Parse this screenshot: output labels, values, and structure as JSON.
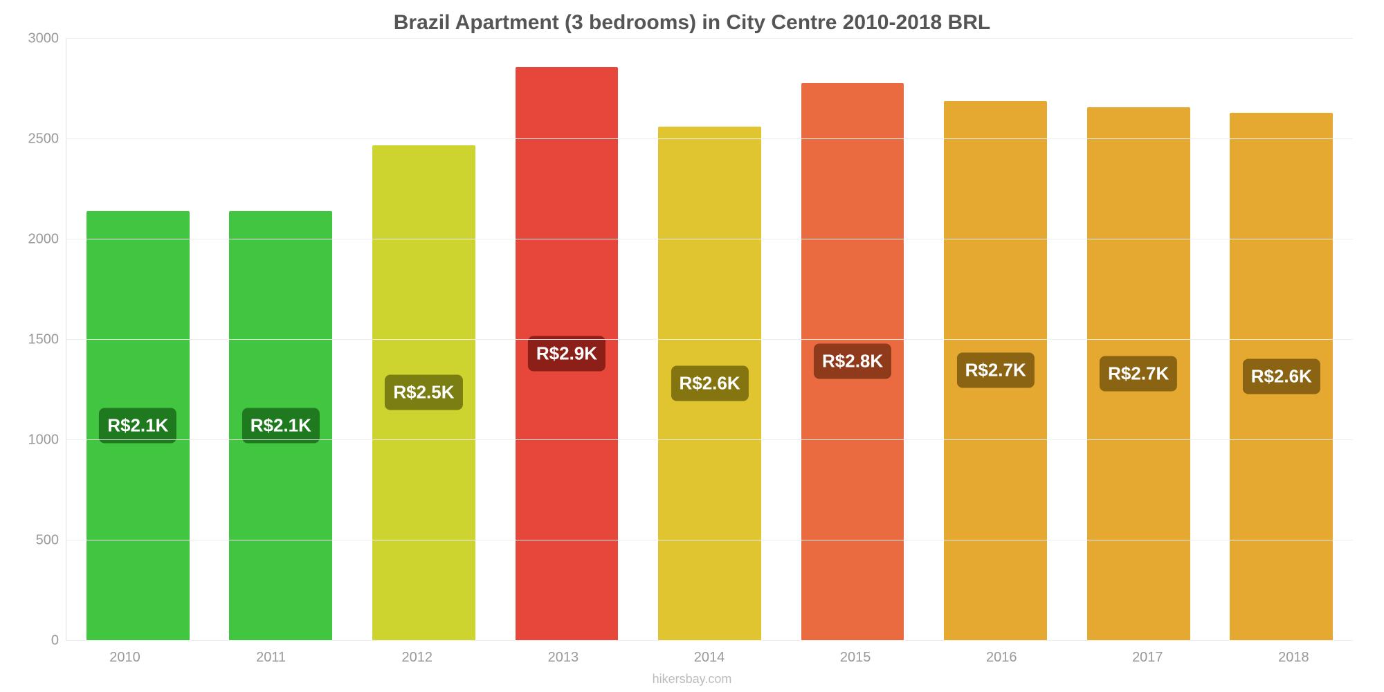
{
  "chart": {
    "type": "bar",
    "title": "Brazil Apartment (3 bedrooms) in City Centre 2010-2018 BRL",
    "title_fontsize": 30,
    "title_color": "#555555",
    "background_color": "#ffffff",
    "grid_color": "#eeeeee",
    "axis_line_color": "#dddddd",
    "tick_label_color": "#999999",
    "tick_fontsize": 20,
    "ylim": [
      0,
      3000
    ],
    "ytick_step": 500,
    "yticks": [
      0,
      500,
      1000,
      1500,
      2000,
      2500,
      3000
    ],
    "categories": [
      "2010",
      "2011",
      "2012",
      "2013",
      "2014",
      "2015",
      "2016",
      "2017",
      "2018"
    ],
    "values": [
      2140,
      2140,
      2470,
      2860,
      2560,
      2780,
      2690,
      2660,
      2630
    ],
    "bar_colors": [
      "#42c642",
      "#42c642",
      "#cdd32f",
      "#e7463a",
      "#e0c530",
      "#ea6b3f",
      "#e5a931",
      "#e5a931",
      "#e5a931"
    ],
    "value_labels": [
      "R$2.1K",
      "R$2.1K",
      "R$2.5K",
      "R$2.9K",
      "R$2.6K",
      "R$2.8K",
      "R$2.7K",
      "R$2.7K",
      "R$2.6K"
    ],
    "value_label_bgs": [
      "#1f7a1f",
      "#1f7a1f",
      "#7a7e13",
      "#8c1f17",
      "#857510",
      "#8f3a1a",
      "#8a6412",
      "#8a6412",
      "#8a6412"
    ],
    "value_label_fontsize": 26,
    "value_label_color": "#ffffff",
    "bar_width_pct": 72,
    "source": "hikersbay.com",
    "source_color": "#bbbbbb"
  }
}
